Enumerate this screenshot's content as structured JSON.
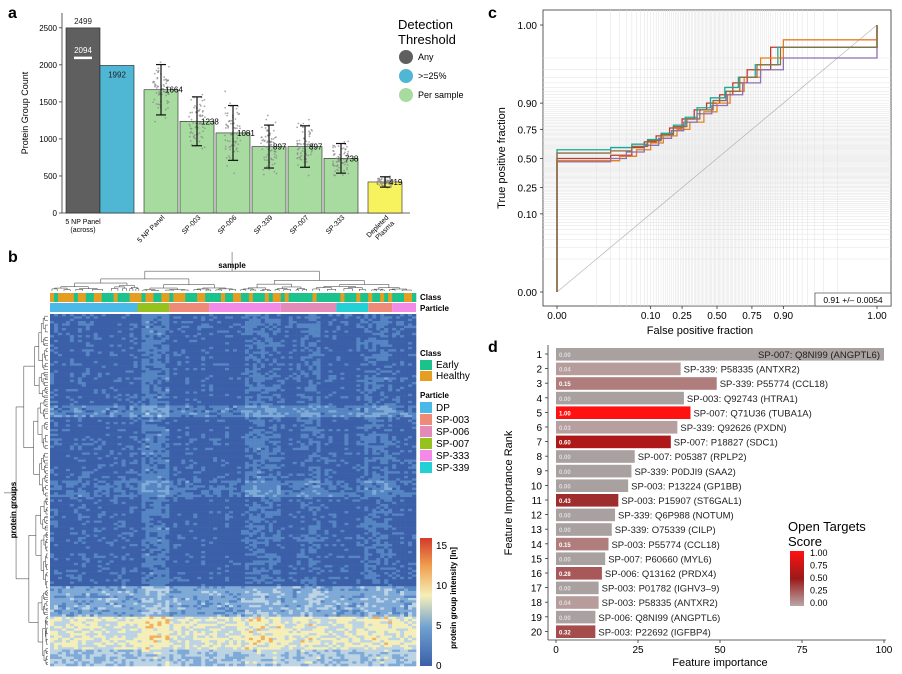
{
  "panels": {
    "a": {
      "letter": "a",
      "ylabel": "Protein Group Count",
      "yticks": [
        "0",
        "500",
        "1000",
        "1500",
        "2000",
        "2500"
      ],
      "bars": [
        {
          "label": "5 NP Panel\n(across)",
          "value": 2499,
          "value_label": "2499",
          "color": "#5f5f5f",
          "sd": null,
          "inner_value": 2094,
          "inner_label": "2094"
        },
        {
          "label": "",
          "value": 1992,
          "value_label": "1992",
          "color": "#4fb6d4",
          "sd": null
        },
        {
          "label": "5 NP Panel",
          "value": 1664,
          "value_label": "1664",
          "color": "#a7dba0",
          "sd": 340
        },
        {
          "label": "SP-003",
          "value": 1238,
          "value_label": "1238",
          "color": "#a7dba0",
          "sd": 330
        },
        {
          "label": "SP-006",
          "value": 1081,
          "value_label": "1081",
          "color": "#a7dba0",
          "sd": 370
        },
        {
          "label": "SP-339",
          "value": 897,
          "value_label": "897",
          "color": "#a7dba0",
          "sd": 290
        },
        {
          "label": "SP-007",
          "value": 897,
          "value_label": "897",
          "color": "#a7dba0",
          "sd": 280
        },
        {
          "label": "SP-333",
          "value": 738,
          "value_label": "738",
          "color": "#a7dba0",
          "sd": 200
        },
        {
          "label": "Depleted\nPlasma",
          "value": 419,
          "value_label": "419",
          "color": "#f7f35e",
          "sd": 70
        }
      ],
      "legend_title": "Detection\nThreshold",
      "legend": [
        {
          "label": "Any",
          "color": "#5f5f5f"
        },
        {
          "label": ">=25%",
          "color": "#4fb6d4"
        },
        {
          "label": "Per sample",
          "color": "#a7dba0"
        }
      ]
    },
    "b": {
      "letter": "b",
      "sample_label": "sample",
      "row_label": "protein groups",
      "track_labels": [
        "Class",
        "Particle"
      ],
      "class_legend_title": "Class",
      "class_legend": [
        {
          "label": "Early",
          "color": "#1cc28c"
        },
        {
          "label": "Healthy",
          "color": "#e69e22"
        }
      ],
      "particle_legend_title": "Particle",
      "particle_legend": [
        {
          "label": "DP",
          "color": "#4ab9e8"
        },
        {
          "label": "SP-003",
          "color": "#f08a78"
        },
        {
          "label": "SP-006",
          "color": "#e48ab9"
        },
        {
          "label": "SP-007",
          "color": "#96c11f"
        },
        {
          "label": "SP-333",
          "color": "#f38ae8"
        },
        {
          "label": "SP-339",
          "color": "#22d0d6"
        }
      ],
      "colorbar_label": "protein group intensity [ln]",
      "colorbar_ticks": [
        "15",
        "10",
        "5",
        "0"
      ]
    },
    "c": {
      "letter": "c",
      "ylabel": "True positive fraction",
      "xlabel": "False positive fraction",
      "yticks": [
        "0.00",
        "0.10",
        "0.25",
        "0.50",
        "0.75",
        "0.90",
        "1.00"
      ],
      "xticks": [
        "0.00",
        "0.10",
        "0.25",
        "0.50",
        "0.75",
        "0.90",
        "1.00"
      ],
      "auc_label": "0.91 +/– 0.0054"
    },
    "d": {
      "letter": "d",
      "ylabel": "Feature Importance Rank",
      "xlabel": "Feature importance",
      "xticks": [
        "0",
        "25",
        "50",
        "75",
        "100"
      ],
      "legend_title": "Open Targets\nScore",
      "legend_ticks": [
        "1.00",
        "0.75",
        "0.50",
        "0.25",
        "0.00"
      ]
    }
  },
  "chart_data": [
    {
      "type": "bar",
      "panel": "a",
      "ylabel": "Protein Group Count",
      "ylim": [
        0,
        2700
      ],
      "categories": [
        "5 NP Panel (across) Any",
        "5 NP Panel (across) >=25%",
        "5 NP Panel",
        "SP-003",
        "SP-006",
        "SP-339",
        "SP-007",
        "SP-333",
        "Depleted Plasma"
      ],
      "values": [
        2499,
        1992,
        1664,
        1238,
        1081,
        897,
        897,
        738,
        419
      ]
    },
    {
      "type": "heatmap",
      "panel": "b",
      "colorscale": [
        "#3b5fa8",
        "#6fa0d0",
        "#f4efb8",
        "#f0a050",
        "#d33a2a"
      ],
      "range": [
        0,
        16
      ]
    },
    {
      "type": "line",
      "panel": "c",
      "xlabel": "False positive fraction",
      "ylabel": "True positive fraction",
      "xlim": [
        0,
        1
      ],
      "ylim": [
        0,
        1
      ],
      "scale": "probit",
      "auc": "0.91 +/– 0.0054",
      "series": [
        {
          "color": "#c0392b",
          "x": [
            0,
            0,
            0.02,
            0.05,
            0.08,
            0.12,
            0.18,
            0.25,
            0.33,
            0.42,
            0.52,
            0.62,
            0.72,
            0.85,
            1.0
          ],
          "y": [
            0,
            0.5,
            0.53,
            0.6,
            0.65,
            0.7,
            0.76,
            0.82,
            0.87,
            0.9,
            0.93,
            0.96,
            0.98,
            0.995,
            1.0
          ]
        },
        {
          "color": "#1aa89a",
          "x": [
            0,
            0,
            0.02,
            0.05,
            0.09,
            0.14,
            0.2,
            0.27,
            0.35,
            0.45,
            0.56,
            0.66,
            0.77,
            0.88,
            1.0
          ],
          "y": [
            0,
            0.58,
            0.6,
            0.63,
            0.67,
            0.72,
            0.78,
            0.83,
            0.88,
            0.92,
            0.95,
            0.97,
            0.985,
            0.995,
            1.0
          ]
        },
        {
          "color": "#e67e22",
          "x": [
            0,
            0,
            0.03,
            0.06,
            0.1,
            0.15,
            0.22,
            0.3,
            0.4,
            0.5,
            0.6,
            0.7,
            0.8,
            0.9,
            1.0
          ],
          "y": [
            0,
            0.48,
            0.52,
            0.58,
            0.64,
            0.7,
            0.75,
            0.8,
            0.86,
            0.9,
            0.94,
            0.97,
            0.99,
            0.997,
            1.0
          ]
        },
        {
          "color": "#8e6fb0",
          "x": [
            0,
            0,
            0.02,
            0.04,
            0.08,
            0.13,
            0.19,
            0.26,
            0.35,
            0.46,
            0.58,
            0.69,
            0.8,
            0.9,
            1.0
          ],
          "y": [
            0,
            0.47,
            0.5,
            0.56,
            0.62,
            0.68,
            0.74,
            0.8,
            0.85,
            0.89,
            0.93,
            0.96,
            0.98,
            0.99,
            1.0
          ]
        },
        {
          "color": "#8c6d3f",
          "x": [
            0,
            0,
            0.02,
            0.05,
            0.09,
            0.14,
            0.2,
            0.28,
            0.37,
            0.47,
            0.57,
            0.67,
            0.78,
            0.89,
            1.0
          ],
          "y": [
            0,
            0.55,
            0.57,
            0.61,
            0.66,
            0.71,
            0.77,
            0.82,
            0.87,
            0.91,
            0.94,
            0.97,
            0.985,
            0.995,
            1.0
          ]
        }
      ]
    },
    {
      "type": "bar",
      "panel": "d",
      "orientation": "horizontal",
      "xlabel": "Feature importance",
      "ylabel": "Feature Importance Rank",
      "xlim": [
        0,
        100
      ],
      "ranks": [
        1,
        2,
        3,
        4,
        5,
        6,
        7,
        8,
        9,
        10,
        11,
        12,
        13,
        14,
        15,
        16,
        17,
        18,
        19,
        20
      ],
      "labels": [
        "SP-007: Q8NI99 (ANGPTL6)",
        "SP-339: P58335 (ANTXR2)",
        "SP-339: P55774 (CCL18)",
        "SP-003: Q92743 (HTRA1)",
        "SP-007: Q71U36 (TUBA1A)",
        "SP-339: Q92626 (PXDN)",
        "SP-007: P18827 (SDC1)",
        "SP-007: P05387 (RPLP2)",
        "SP-339: P0DJI9 (SAA2)",
        "SP-003: P13224 (GP1BB)",
        "SP-003: P15907 (ST6GAL1)",
        "SP-339: Q6P988 (NOTUM)",
        "SP-339: O75339 (CILP)",
        "SP-003: P55774 (CCL18)",
        "SP-007: P60660 (MYL6)",
        "SP-006: Q13162 (PRDX4)",
        "SP-003: P01782 (IGHV3–9)",
        "SP-003: P58335 (ANTXR2)",
        "SP-006: Q8NI99 (ANGPTL6)",
        "SP-003: P22692 (IGFBP4)"
      ],
      "values": [
        100,
        38,
        49,
        39,
        41,
        37,
        35,
        24,
        23,
        22,
        19,
        18,
        17,
        16,
        15,
        14,
        13,
        13,
        12,
        12
      ],
      "scores": [
        "0.00",
        "0.04",
        "0.15",
        "0.00",
        "1.00",
        "0.03",
        "0.60",
        "0.00",
        "0.00",
        "0.00",
        "0.43",
        "0.00",
        "0.00",
        "0.15",
        "0.00",
        "0.28",
        "0.00",
        "0.04",
        "0.00",
        "0.32"
      ],
      "score_values": [
        0.0,
        0.04,
        0.15,
        0.0,
        1.0,
        0.03,
        0.6,
        0.0,
        0.0,
        0.0,
        0.43,
        0.0,
        0.0,
        0.15,
        0.0,
        0.28,
        0.0,
        0.04,
        0.0,
        0.32
      ]
    }
  ]
}
